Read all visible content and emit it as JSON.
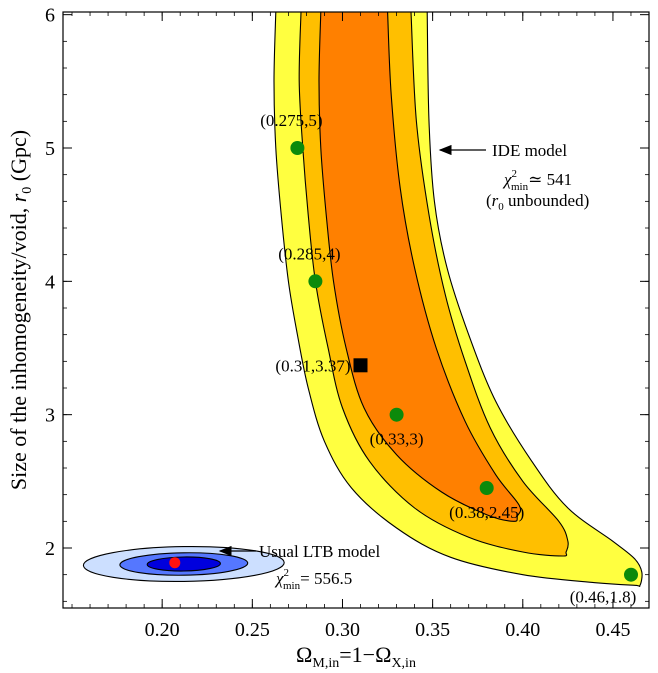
{
  "chart_data": {
    "type": "contour",
    "xlabel": "Ω_M,in=1−Ω_X,in",
    "xlabel_parts": {
      "omega": "Ω",
      "sub1": "M,in",
      "mid": "=1−",
      "sub2": "X,in"
    },
    "ylabel": "Size of the inhomogeneity/void, r0 (Gpc)",
    "ylabel_parts": {
      "pre": "Size of the inhomogeneity/void, ",
      "r": "r",
      "sub": "0",
      "post": " (Gpc)"
    },
    "xlim": [
      0.145,
      0.47
    ],
    "ylim": [
      1.55,
      6.02
    ],
    "xticks": [
      0.2,
      0.25,
      0.3,
      0.35,
      0.4,
      0.45
    ],
    "xtick_labels": [
      "0.20",
      "0.25",
      "0.30",
      "0.35",
      "0.40",
      "0.45"
    ],
    "yticks": [
      2,
      3,
      4,
      5,
      6
    ],
    "ytick_labels": [
      "2",
      "3",
      "4",
      "5",
      "6"
    ],
    "grid": false,
    "colors": {
      "ide_outer": "#ffff40",
      "ide_mid": "#ffbf00",
      "ide_inner": "#ff8000",
      "ltb_outer": "#ccdfff",
      "ltb_mid": "#5577ff",
      "ltb_inner": "#0000dd",
      "point_green": "#0b8a0b",
      "point_red": "#ff1111",
      "marker_black": "#000000"
    },
    "ide_contours": {
      "outer_left": [
        [
          0.263,
          6.02
        ],
        [
          0.262,
          5.5
        ],
        [
          0.263,
          5.0
        ],
        [
          0.266,
          4.5
        ],
        [
          0.27,
          4.0
        ],
        [
          0.275,
          3.6
        ],
        [
          0.281,
          3.2
        ],
        [
          0.29,
          2.8
        ],
        [
          0.305,
          2.45
        ],
        [
          0.33,
          2.15
        ],
        [
          0.36,
          1.93
        ],
        [
          0.4,
          1.8
        ],
        [
          0.44,
          1.74
        ],
        [
          0.462,
          1.72
        ]
      ],
      "outer_right": [
        [
          0.465,
          1.72
        ],
        [
          0.466,
          1.82
        ],
        [
          0.462,
          1.92
        ],
        [
          0.45,
          2.05
        ],
        [
          0.425,
          2.3
        ],
        [
          0.405,
          2.65
        ],
        [
          0.385,
          3.1
        ],
        [
          0.37,
          3.6
        ],
        [
          0.358,
          4.1
        ],
        [
          0.351,
          4.6
        ],
        [
          0.348,
          5.2
        ],
        [
          0.347,
          6.02
        ]
      ],
      "mid_left": [
        [
          0.277,
          6.02
        ],
        [
          0.276,
          5.5
        ],
        [
          0.278,
          5.0
        ],
        [
          0.281,
          4.5
        ],
        [
          0.285,
          4.0
        ],
        [
          0.292,
          3.5
        ],
        [
          0.3,
          3.05
        ],
        [
          0.315,
          2.65
        ],
        [
          0.34,
          2.3
        ],
        [
          0.37,
          2.08
        ],
        [
          0.4,
          1.97
        ],
        [
          0.422,
          1.94
        ]
      ],
      "mid_right": [
        [
          0.424,
          1.97
        ],
        [
          0.425,
          2.05
        ],
        [
          0.42,
          2.2
        ],
        [
          0.4,
          2.5
        ],
        [
          0.382,
          2.9
        ],
        [
          0.368,
          3.4
        ],
        [
          0.357,
          3.9
        ],
        [
          0.348,
          4.5
        ],
        [
          0.341,
          5.2
        ],
        [
          0.338,
          6.02
        ]
      ],
      "inner_left": [
        [
          0.288,
          6.02
        ],
        [
          0.287,
          5.5
        ],
        [
          0.288,
          5.0
        ],
        [
          0.291,
          4.5
        ],
        [
          0.295,
          4.0
        ],
        [
          0.302,
          3.5
        ],
        [
          0.312,
          3.05
        ],
        [
          0.33,
          2.7
        ],
        [
          0.355,
          2.42
        ],
        [
          0.38,
          2.25
        ],
        [
          0.395,
          2.2
        ]
      ],
      "inner_right": [
        [
          0.397,
          2.24
        ],
        [
          0.398,
          2.32
        ],
        [
          0.385,
          2.55
        ],
        [
          0.368,
          2.95
        ],
        [
          0.352,
          3.5
        ],
        [
          0.34,
          4.1
        ],
        [
          0.332,
          4.7
        ],
        [
          0.327,
          5.4
        ],
        [
          0.325,
          6.02
        ]
      ]
    },
    "ltb_contours": {
      "center": [
        0.212,
        1.88
      ],
      "ellipses": [
        {
          "level": "outer",
          "rx_data": 0.055,
          "ry_data": 0.21
        },
        {
          "level": "mid",
          "rx_data": 0.035,
          "ry_data": 0.135
        },
        {
          "level": "inner",
          "rx_data": 0.02,
          "ry_data": 0.085
        }
      ],
      "tilt_slope": 1.6
    },
    "points": [
      {
        "x": 0.275,
        "y": 5.0,
        "label": "(0.275,5)",
        "color": "green",
        "label_pos": "above-left"
      },
      {
        "x": 0.285,
        "y": 4.0,
        "label": "(0.285,4)",
        "color": "green",
        "label_pos": "above-left"
      },
      {
        "x": 0.31,
        "y": 3.37,
        "label": "(0.31,3.37)",
        "color": "black-square",
        "label_pos": "left"
      },
      {
        "x": 0.33,
        "y": 3.0,
        "label": "(0.33,3)",
        "color": "green",
        "label_pos": "below"
      },
      {
        "x": 0.38,
        "y": 2.45,
        "label": "(0.38,2.45)",
        "color": "green",
        "label_pos": "below"
      },
      {
        "x": 0.46,
        "y": 1.8,
        "label": "(0.46,1.8)",
        "color": "green",
        "label_pos": "below-left"
      },
      {
        "x": 0.207,
        "y": 1.89,
        "label": "",
        "color": "red",
        "label_pos": "none"
      }
    ],
    "annotations": {
      "ide": {
        "title": "IDE model",
        "chi_symbol": "χ",
        "chi_sup": "2",
        "chi_sub": "min",
        "chi_value": "≃ 541",
        "note_open": "(",
        "note_r": "r",
        "note_sub": "0",
        "note_rest": " unbounded)"
      },
      "ltb": {
        "title": "Usual LTB model",
        "chi_symbol": "χ",
        "chi_sup": "2",
        "chi_sub": "min",
        "chi_value": "= 556.5"
      }
    }
  }
}
